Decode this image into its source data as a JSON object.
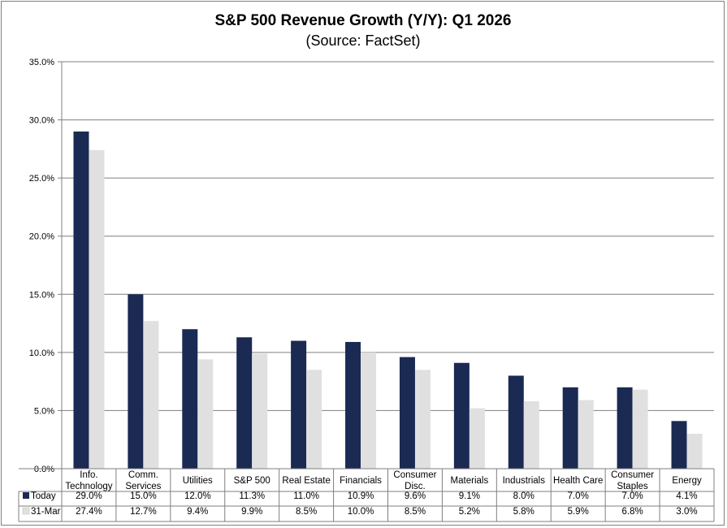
{
  "chart_data": {
    "type": "bar",
    "title": "S&P 500 Revenue Growth (Y/Y): Q1 2026",
    "subtitle": "(Source: FactSet)",
    "categories": [
      [
        "Info.",
        "Technology"
      ],
      [
        "Comm.",
        "Services"
      ],
      [
        "Utilities"
      ],
      [
        "S&P 500"
      ],
      [
        "Real Estate"
      ],
      [
        "Financials"
      ],
      [
        "Consumer",
        "Disc."
      ],
      [
        "Materials"
      ],
      [
        "Industrials"
      ],
      [
        "Health Care"
      ],
      [
        "Consumer",
        "Staples"
      ],
      [
        "Energy"
      ]
    ],
    "series": [
      {
        "name": "Today",
        "color": "#1a2a52",
        "values": [
          29.0,
          15.0,
          12.0,
          11.3,
          11.0,
          10.9,
          9.6,
          9.1,
          8.0,
          7.0,
          7.0,
          4.1
        ],
        "labels": [
          "29.0%",
          "15.0%",
          "12.0%",
          "11.3%",
          "11.0%",
          "10.9%",
          "9.6%",
          "9.1%",
          "8.0%",
          "7.0%",
          "7.0%",
          "4.1%"
        ]
      },
      {
        "name": "31-Mar",
        "color": "#e0e0e0",
        "values": [
          27.4,
          12.7,
          9.4,
          9.9,
          8.5,
          10.0,
          8.5,
          5.2,
          5.8,
          5.9,
          6.8,
          3.0
        ],
        "labels": [
          "27.4%",
          "12.7%",
          "9.4%",
          "9.9%",
          "8.5%",
          "10.0%",
          "8.5%",
          "5.2%",
          "5.8%",
          "5.9%",
          "6.8%",
          "3.0%"
        ]
      }
    ],
    "yticks": [
      "0.0%",
      "5.0%",
      "10.0%",
      "15.0%",
      "20.0%",
      "25.0%",
      "30.0%",
      "35.0%"
    ],
    "ylim": [
      0,
      35
    ],
    "grid": true,
    "legend": "data-table"
  }
}
